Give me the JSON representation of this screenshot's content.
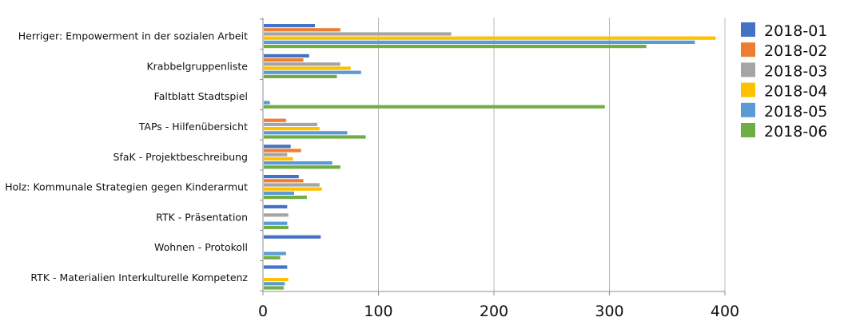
{
  "chart_data": {
    "type": "bar",
    "orientation": "horizontal",
    "title": "",
    "xlabel": "",
    "ylabel": "",
    "xlim": [
      0,
      400
    ],
    "x_ticks": [
      0,
      100,
      200,
      300,
      400
    ],
    "x_tick_labels": [
      "0",
      "100",
      "200",
      "300",
      "400"
    ],
    "grid": "vertical",
    "legend_position": "right",
    "categories": [
      "Herriger: Empowerment in der sozialen Arbeit",
      "Krabbelgruppenliste",
      "Faltblatt Stadtspiel",
      "TAPs - Hilfenübersicht",
      "SfaK - Projektbeschreibung",
      "Holz: Kommunale Strategien gegen Kinderarmut",
      "RTK - Präsentation",
      "Wohnen - Protokoll",
      "RTK - Materialien Interkulturelle Kompetenz"
    ],
    "series": [
      {
        "name": "2018-01",
        "color": "#4472c4",
        "values": [
          45,
          40,
          0,
          0,
          24,
          31,
          21,
          50,
          21
        ]
      },
      {
        "name": "2018-02",
        "color": "#ed7d31",
        "values": [
          67,
          35,
          0,
          20,
          33,
          35,
          0,
          0,
          0
        ]
      },
      {
        "name": "2018-03",
        "color": "#a5a5a5",
        "values": [
          163,
          67,
          0,
          47,
          21,
          49,
          22,
          0,
          0
        ]
      },
      {
        "name": "2018-04",
        "color": "#ffc000",
        "values": [
          392,
          76,
          0,
          49,
          26,
          51,
          0,
          0,
          22
        ]
      },
      {
        "name": "2018-05",
        "color": "#5b9bd5",
        "values": [
          374,
          85,
          6,
          73,
          60,
          27,
          21,
          20,
          19
        ]
      },
      {
        "name": "2018-06",
        "color": "#70ad47",
        "values": [
          332,
          64,
          296,
          89,
          67,
          38,
          22,
          15,
          18
        ]
      }
    ]
  }
}
